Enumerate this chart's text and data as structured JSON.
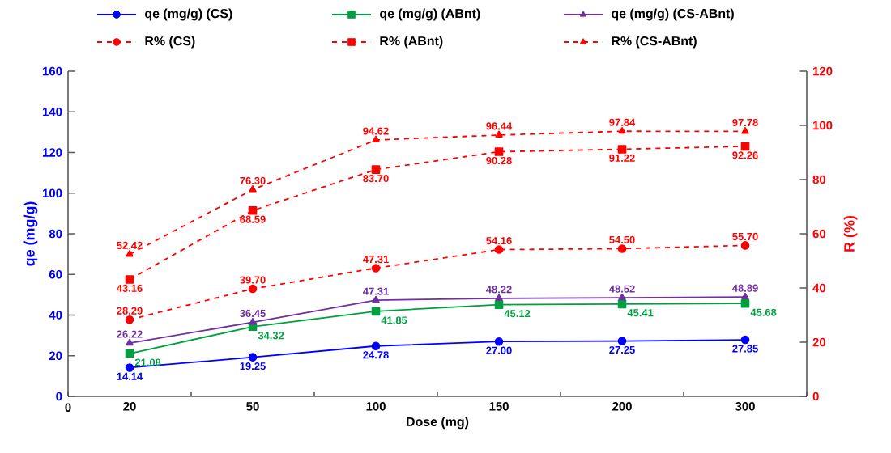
{
  "chart_data": {
    "type": "line",
    "xlabel": "Dose (mg)",
    "ylabel": "qe (mg/g)",
    "y2label": "R (%)",
    "categories": [
      "20",
      "50",
      "100",
      "150",
      "200",
      "300"
    ],
    "ylim": [
      0,
      160
    ],
    "yticks": [
      0,
      20,
      40,
      60,
      80,
      100,
      120,
      140,
      160
    ],
    "y2lim": [
      0,
      120
    ],
    "y2ticks": [
      0,
      20,
      40,
      60,
      80,
      100,
      120
    ],
    "legend": "top",
    "annotations": [
      "0"
    ],
    "series": [
      {
        "name": "qe (mg/g) (CS)",
        "color": "#0000ff",
        "marker": "circle",
        "line_style": "solid",
        "values": [
          14.14,
          19.25,
          24.78,
          27.0,
          27.25,
          27.85
        ],
        "value_labels": [
          "14.14",
          "19.25",
          "24.78",
          "27.00",
          "27.25",
          "27.85"
        ]
      },
      {
        "name": "qe (mg/g) (ABnt)",
        "color": "#00a040",
        "marker": "square",
        "line_style": "solid",
        "values": [
          21.08,
          34.32,
          41.85,
          45.12,
          45.41,
          45.68
        ],
        "value_labels": [
          "21.08",
          "34.32",
          "41.85",
          "45.12",
          "45.41",
          "45.68"
        ]
      },
      {
        "name": "qe (mg/g) (CS-ABnt)",
        "color": "#7030a0",
        "marker": "triangle",
        "line_style": "solid",
        "values": [
          26.22,
          36.45,
          47.31,
          48.22,
          48.52,
          48.89
        ],
        "value_labels": [
          "26.22",
          "36.45",
          "47.31",
          "48.22",
          "48.52",
          "48.89"
        ]
      },
      {
        "name": "R% (CS)",
        "color": "#ff0000",
        "marker": "circle",
        "line_style": "dashed",
        "axis": "y2",
        "values": [
          28.29,
          39.7,
          47.31,
          54.16,
          54.5,
          55.7
        ],
        "value_labels": [
          "28.29",
          "39.70",
          "47.31",
          "54.16",
          "54.50",
          "55.70"
        ]
      },
      {
        "name": "R% (ABnt)",
        "color": "#ff0000",
        "marker": "square",
        "line_style": "dashed",
        "axis": "y2",
        "values": [
          43.16,
          68.59,
          83.7,
          90.28,
          91.22,
          92.26
        ],
        "value_labels": [
          "43.16",
          "68.59",
          "83.70",
          "90.28",
          "91.22",
          "92.26"
        ]
      },
      {
        "name": "R% (CS-ABnt)",
        "color": "#ff0000",
        "marker": "triangle",
        "line_style": "dashed",
        "axis": "y2",
        "values": [
          52.42,
          76.3,
          94.62,
          96.44,
          97.84,
          97.78
        ],
        "value_labels": [
          "52.42",
          "76.30",
          "94.62",
          "96.44",
          "97.84",
          "97.78"
        ]
      }
    ]
  }
}
